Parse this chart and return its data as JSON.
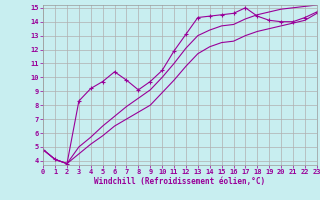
{
  "xlabel": "Windchill (Refroidissement éolien,°C)",
  "ylabel": "",
  "xlim": [
    0,
    23
  ],
  "ylim": [
    3.7,
    15.2
  ],
  "yticks": [
    4,
    5,
    6,
    7,
    8,
    9,
    10,
    11,
    12,
    13,
    14,
    15
  ],
  "xticks": [
    0,
    1,
    2,
    3,
    4,
    5,
    6,
    7,
    8,
    9,
    10,
    11,
    12,
    13,
    14,
    15,
    16,
    17,
    18,
    19,
    20,
    21,
    22,
    23
  ],
  "background_color": "#c8eef0",
  "grid_color": "#b0b0b0",
  "line_color": "#990099",
  "line1_x": [
    0,
    1,
    2,
    3,
    4,
    5,
    6,
    7,
    8,
    9,
    10,
    11,
    12,
    13,
    14,
    15,
    16,
    17,
    18,
    19,
    20,
    21,
    22,
    23
  ],
  "line1_y": [
    4.8,
    4.1,
    3.8,
    8.3,
    9.2,
    9.7,
    10.4,
    9.8,
    9.1,
    9.7,
    10.5,
    11.9,
    13.1,
    14.3,
    14.4,
    14.5,
    14.6,
    15.0,
    14.4,
    14.1,
    14.0,
    14.0,
    14.3,
    14.7
  ],
  "line2_x": [
    0,
    1,
    2,
    3,
    4,
    5,
    6,
    7,
    8,
    9,
    10,
    11,
    12,
    13,
    14,
    15,
    16,
    17,
    18,
    19,
    20,
    21,
    22,
    23
  ],
  "line2_y": [
    4.8,
    4.1,
    3.8,
    4.5,
    5.2,
    5.8,
    6.5,
    7.0,
    7.5,
    8.0,
    8.9,
    9.8,
    10.8,
    11.7,
    12.2,
    12.5,
    12.6,
    13.0,
    13.3,
    13.5,
    13.7,
    13.9,
    14.1,
    14.6
  ],
  "line3_x": [
    0,
    1,
    2,
    3,
    4,
    5,
    6,
    7,
    8,
    9,
    10,
    11,
    12,
    13,
    14,
    15,
    16,
    17,
    18,
    19,
    20,
    21,
    22,
    23
  ],
  "line3_y": [
    4.8,
    4.1,
    3.8,
    5.0,
    5.7,
    6.5,
    7.2,
    7.9,
    8.5,
    9.1,
    10.0,
    11.0,
    12.1,
    13.0,
    13.4,
    13.7,
    13.8,
    14.2,
    14.5,
    14.7,
    14.9,
    15.0,
    15.1,
    15.2
  ]
}
